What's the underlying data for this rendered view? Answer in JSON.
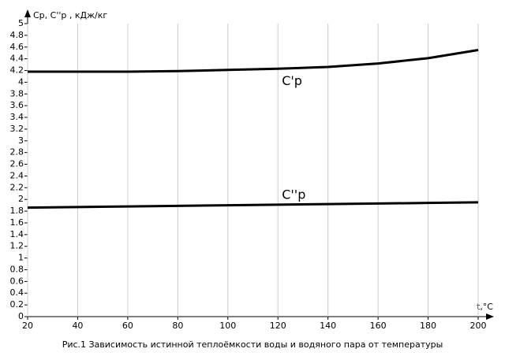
{
  "chart_data": {
    "type": "line",
    "title": "Рис.1 Зависимость истинной теплоёмкости воды и водяного пара от температуры",
    "y_label": "Cр, C''р , кДж/кг",
    "x_label": "t,°C",
    "x": [
      20,
      40,
      60,
      80,
      100,
      120,
      140,
      160,
      180,
      200
    ],
    "series": [
      {
        "name": "C'p",
        "color": "#000000",
        "values": [
          4.18,
          4.18,
          4.18,
          4.19,
          4.21,
          4.23,
          4.26,
          4.32,
          4.41,
          4.55
        ]
      },
      {
        "name": "C''p",
        "color": "#000000",
        "values": [
          1.86,
          1.87,
          1.88,
          1.89,
          1.9,
          1.91,
          1.92,
          1.93,
          1.94,
          1.95
        ]
      }
    ],
    "xlim": [
      20,
      200
    ],
    "xticks": [
      20,
      40,
      60,
      80,
      100,
      120,
      140,
      160,
      180,
      200
    ],
    "ylim": [
      0,
      5
    ],
    "yticks": [
      0,
      0.2,
      0.4,
      0.6,
      0.8,
      1,
      1.2,
      1.4,
      1.6,
      1.8,
      2,
      2.2,
      2.4,
      2.6,
      2.8,
      3,
      3.2,
      3.4,
      3.6,
      3.8,
      4,
      4.2,
      4.4,
      4.6,
      4.8,
      5
    ],
    "grid": "x"
  }
}
